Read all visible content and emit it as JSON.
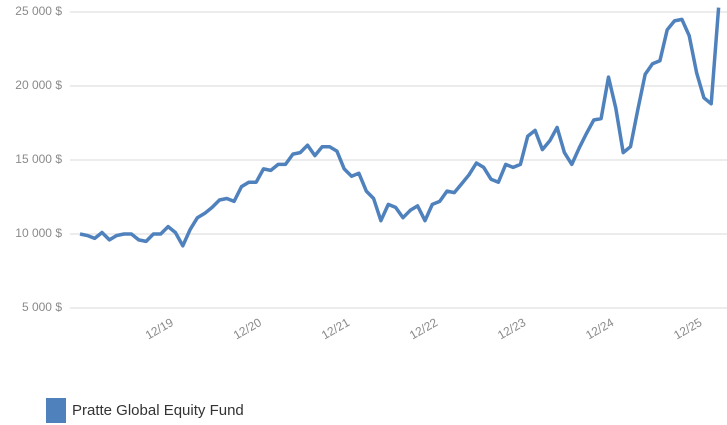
{
  "chart_data": {
    "type": "line",
    "categories": [
      null,
      null,
      null,
      null,
      null,
      null,
      null,
      null,
      null,
      null,
      null,
      "12/19",
      null,
      null,
      null,
      null,
      null,
      null,
      null,
      null,
      null,
      null,
      null,
      "12/20",
      null,
      null,
      null,
      null,
      null,
      null,
      null,
      null,
      null,
      null,
      null,
      "12/21",
      null,
      null,
      null,
      null,
      null,
      null,
      null,
      null,
      null,
      null,
      null,
      "12/22",
      null,
      null,
      null,
      null,
      null,
      null,
      null,
      null,
      null,
      null,
      null,
      "12/23",
      null,
      null,
      null,
      null,
      null,
      null,
      null,
      null,
      null,
      null,
      null,
      "12/24",
      null,
      null,
      null,
      null,
      null,
      null,
      null,
      null,
      null,
      null,
      null,
      "12/25",
      null,
      null,
      null,
      null
    ],
    "series": [
      {
        "name": "Pratte Global Equity Fund",
        "color": "#4f81bd",
        "values": [
          10000,
          9900,
          9700,
          10100,
          9600,
          9900,
          10000,
          10000,
          9600,
          9500,
          10000,
          10000,
          10500,
          10100,
          9200,
          10300,
          11100,
          11400,
          11800,
          12300,
          12400,
          12200,
          13200,
          13500,
          13500,
          14400,
          14300,
          14700,
          14700,
          15400,
          15500,
          16000,
          15300,
          15900,
          15900,
          15600,
          14400,
          13900,
          14100,
          12900,
          12400,
          10900,
          12000,
          11800,
          11100,
          11600,
          11900,
          10900,
          12000,
          12200,
          12900,
          12800,
          13400,
          14000,
          14800,
          14500,
          13700,
          13500,
          14700,
          14500,
          14700,
          16600,
          17000,
          15700,
          16300,
          17200,
          15500,
          14700,
          15800,
          16800,
          17700,
          17800,
          20600,
          18500,
          15500,
          15900,
          18400,
          20800,
          21500,
          21700,
          23800,
          24400,
          24500,
          23400,
          20900,
          19200,
          18800,
          25300
        ]
      }
    ],
    "ylim": [
      5000,
      25000
    ],
    "yticks": [
      {
        "value": 5000,
        "label": "5 000 $"
      },
      {
        "value": 10000,
        "label": "10 000 $"
      },
      {
        "value": 15000,
        "label": "15 000 $"
      },
      {
        "value": 20000,
        "label": "20 000 $"
      },
      {
        "value": 25000,
        "label": "25 000 $"
      }
    ],
    "grid": true,
    "legend": "bottom-left"
  }
}
